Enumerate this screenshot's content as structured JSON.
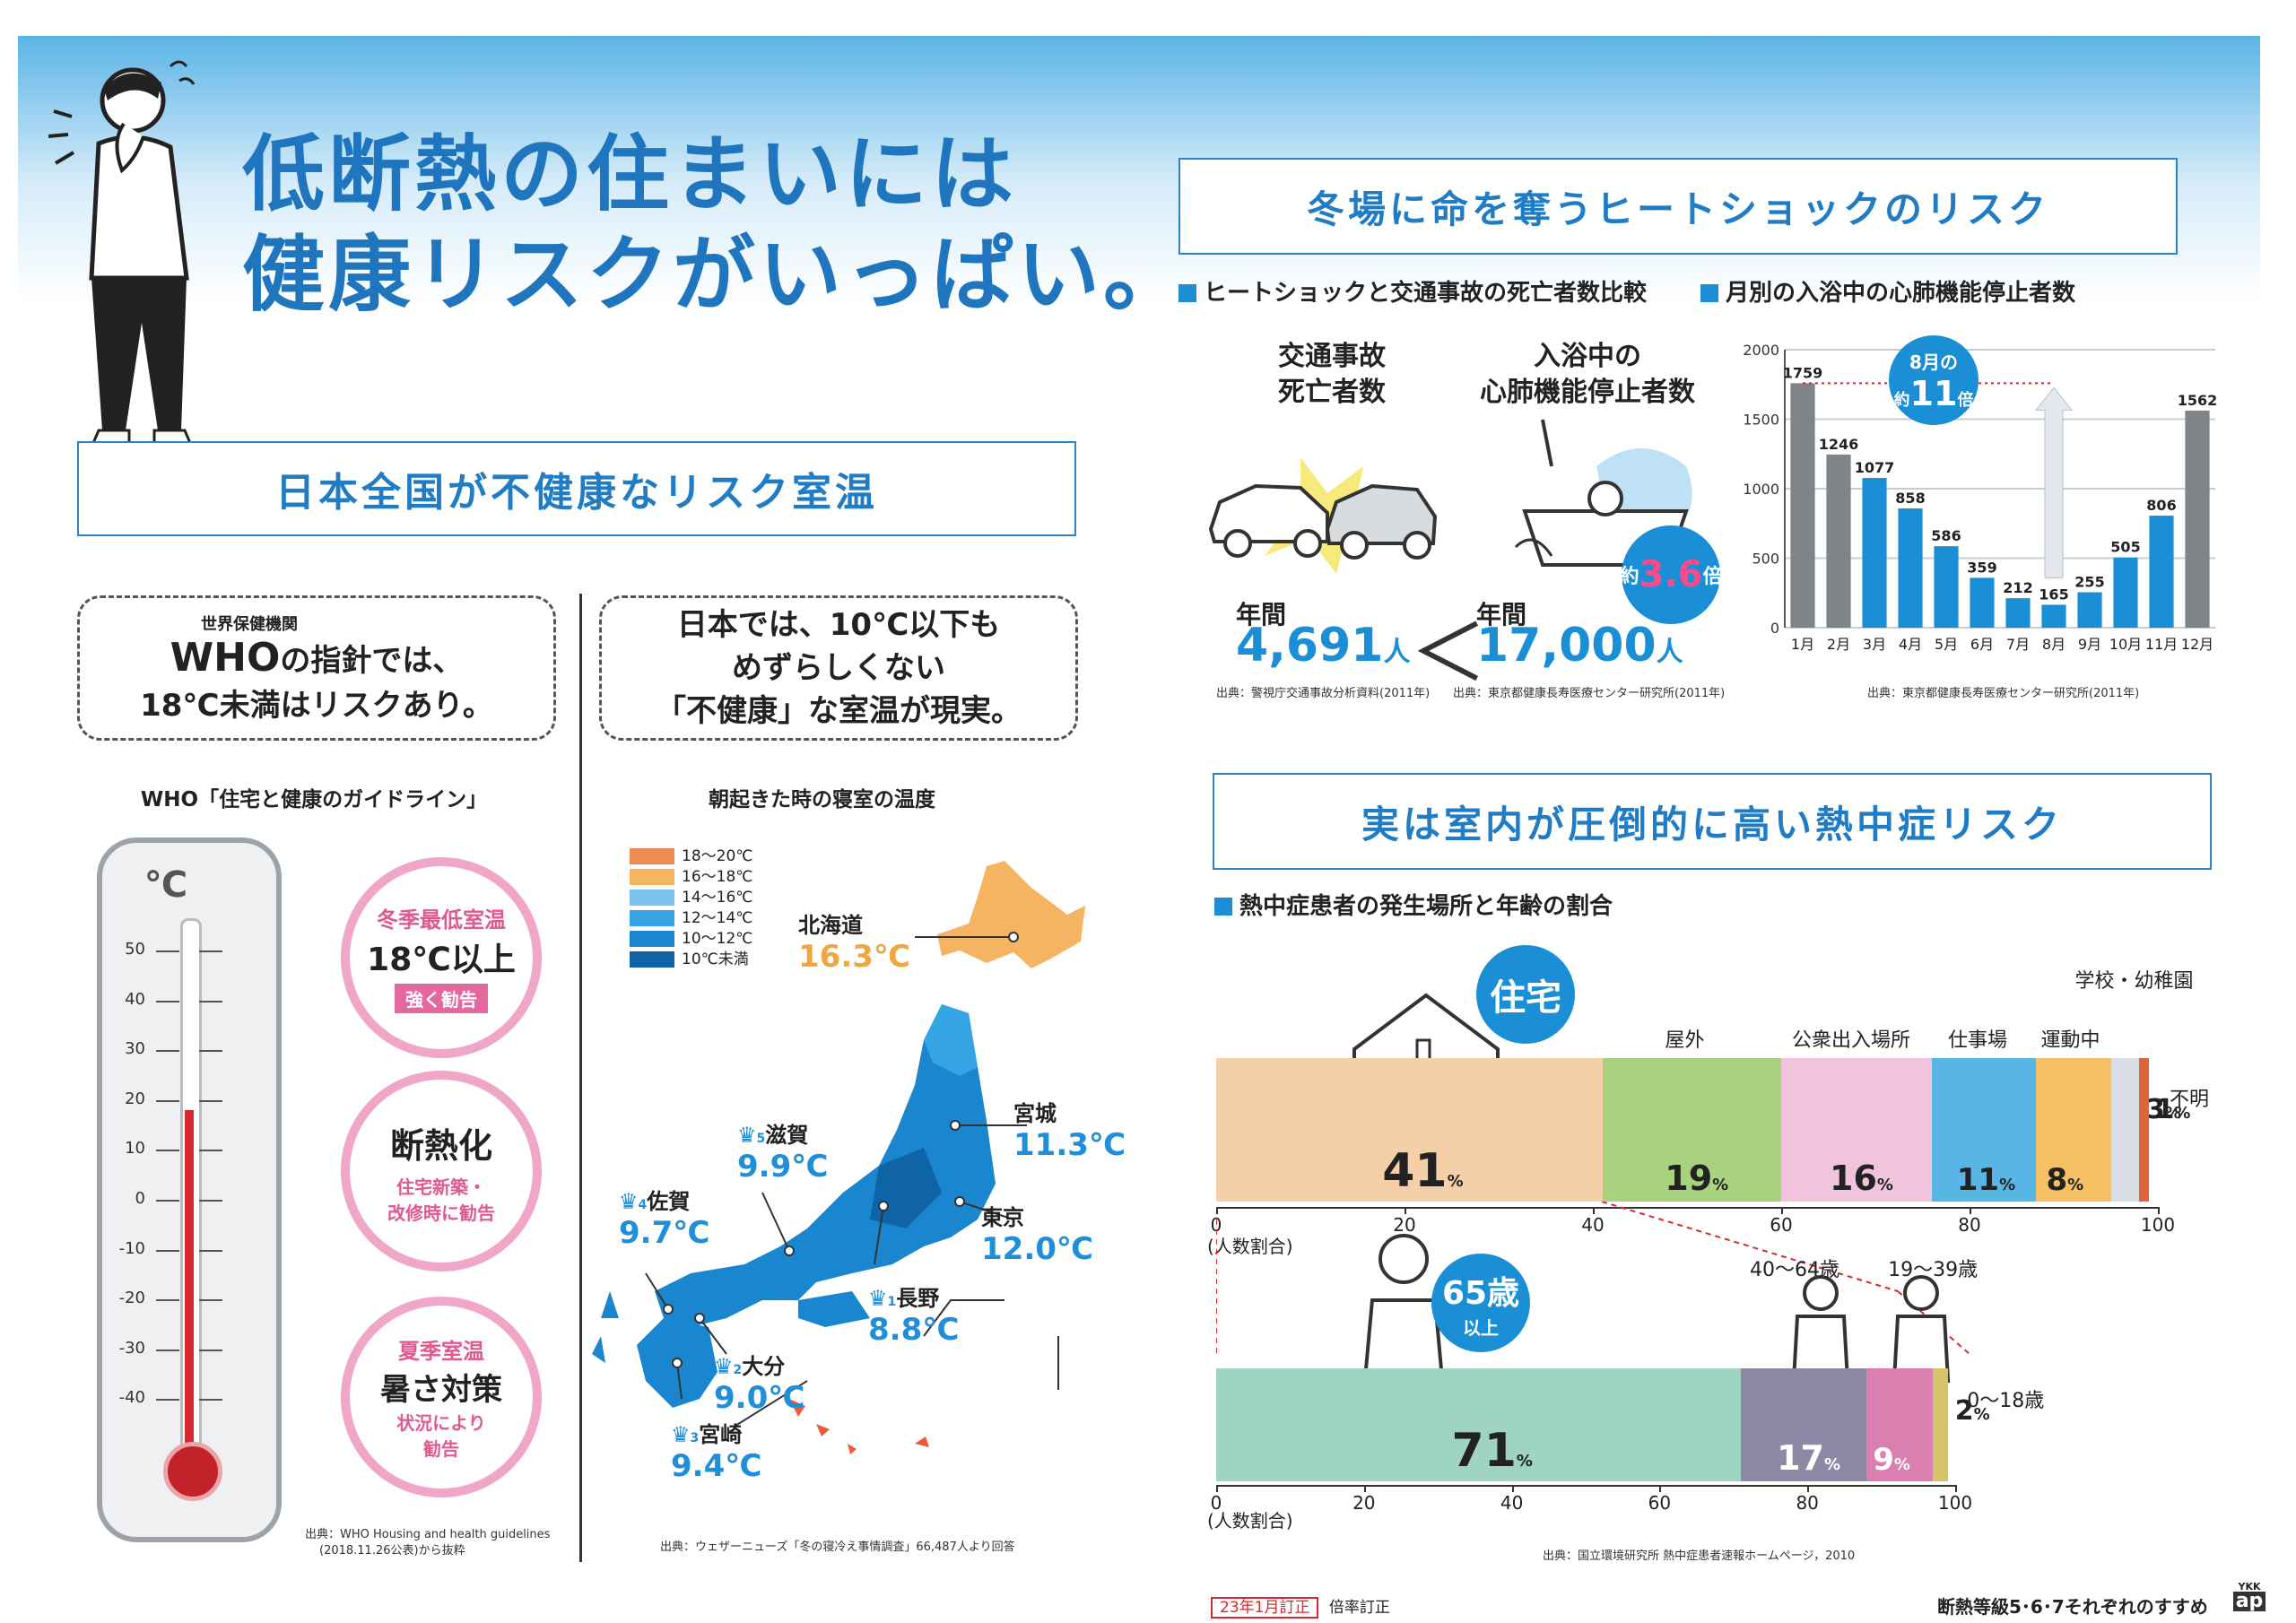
{
  "title": {
    "line1": "低断熱の住まいには",
    "line2": "健康リスクがいっぱい。"
  },
  "section_temp": {
    "banner": "日本全国が不健康なリスク室温",
    "who_bubble": {
      "small": "世界保健機関",
      "big": "WHO",
      "rest": "の指針では、",
      "line2": "18℃未満はリスクあり。"
    },
    "japan_bubble": {
      "line1": "日本では、10℃以下も",
      "line2": "めずらしくない",
      "line3": "「不健康」な室温が現実。"
    },
    "who_caption": "WHO「住宅と健康のガイドライン」",
    "thermo_unit": "℃",
    "thermo_ticks": [
      "50",
      "40",
      "30",
      "20",
      "10",
      "0",
      "-10",
      "-20",
      "-30",
      "-40"
    ],
    "thermo_level_c": 18,
    "circle1": {
      "title": "冬季最低室温",
      "value": "18℃以上",
      "tag": "強く勧告"
    },
    "circle2": {
      "title": "断熱化",
      "note1": "住宅新築・",
      "note2": "改修時に勧告"
    },
    "circle3": {
      "title": "夏季室温",
      "value": "暑さ対策",
      "note1": "状況により",
      "note2": "勧告"
    },
    "who_source1": "出典：WHO Housing and health guidelines",
    "who_source2": "(2018.11.26公表)から抜粋",
    "map_caption": "朝起きた時の寝室の温度",
    "legend": [
      {
        "label": "18～20℃",
        "color": "#ef8a52"
      },
      {
        "label": "16～18℃",
        "color": "#f4b462"
      },
      {
        "label": "14～16℃",
        "color": "#7cc3ee"
      },
      {
        "label": "12～14℃",
        "color": "#35a4e5"
      },
      {
        "label": "10～12℃",
        "color": "#1a86cf"
      },
      {
        "label": "10℃未満",
        "color": "#0f64a8"
      }
    ],
    "cities": [
      {
        "name": "北海道",
        "temp": "16.3℃"
      },
      {
        "name": "宮城",
        "temp": "11.3℃"
      },
      {
        "name": "東京",
        "temp": "12.0℃"
      },
      {
        "name": "長野",
        "temp": "8.8℃",
        "rank": "1"
      },
      {
        "name": "大分",
        "temp": "9.0℃",
        "rank": "2"
      },
      {
        "name": "宮崎",
        "temp": "9.4℃",
        "rank": "3"
      },
      {
        "name": "佐賀",
        "temp": "9.7℃",
        "rank": "4"
      },
      {
        "name": "滋賀",
        "temp": "9.9℃",
        "rank": "5"
      }
    ],
    "map_source": "出典：ウェザーニューズ「冬の寝冷え事情調査」66,487人より回答"
  },
  "heat_shock": {
    "banner": "冬場に命を奪うヒートショックのリスク",
    "sub1": "ヒートショックと交通事故の死亡者数比較",
    "sub2": "月別の入浴中の心肺機能停止者数",
    "traffic_label1": "交通事故",
    "traffic_label2": "死亡者数",
    "bath_label1": "入浴中の",
    "bath_label2": "心肺機能停止者数",
    "year_label": "年間",
    "traffic_value": "4,691",
    "bath_value": "17,000",
    "person_unit": "人",
    "compare_symbol": "＜",
    "ratio_prefix": "約",
    "ratio_value": "3.6",
    "ratio_suffix": "倍",
    "source1": "出典：警視庁交通事故分析資料(2011年)",
    "source2": "出典：東京都健康長寿医療センター研究所(2011年)",
    "chart_source": "出典：東京都健康長寿医療センター研究所(2011年)",
    "aug_badge": {
      "top": "8月の",
      "prefix": "約",
      "value": "11",
      "suffix": "倍"
    }
  },
  "chart_data": {
    "type": "bar",
    "title": "月別の入浴中の心肺機能停止者数",
    "categories": [
      "1月",
      "2月",
      "3月",
      "4月",
      "5月",
      "6月",
      "7月",
      "8月",
      "9月",
      "10月",
      "11月",
      "12月"
    ],
    "values": [
      1759,
      1246,
      1077,
      858,
      586,
      359,
      212,
      165,
      255,
      505,
      806,
      1562
    ],
    "ylim": [
      0,
      2000
    ],
    "yticks": [
      "0",
      "500",
      "1000",
      "1500",
      "2000"
    ],
    "colors": {
      "winter": "#7f8488",
      "other": "#1b8fd6"
    },
    "grid": true
  },
  "heatstroke": {
    "banner": "実は室内が圧倒的に高い熱中症リスク",
    "sub": "熱中症患者の発生場所と年齢の割合",
    "home_badge": "住宅",
    "axis_caption": "(人数割合)",
    "axis_ticks": [
      "0",
      "20",
      "40",
      "60",
      "80",
      "100"
    ],
    "places": [
      {
        "name": "",
        "value": 41,
        "color": "#f4cfa7"
      },
      {
        "name": "屋外",
        "value": 19,
        "color": "#a9d27f"
      },
      {
        "name": "公衆出入場所",
        "value": 16,
        "color": "#f2c3dc"
      },
      {
        "name": "仕事場",
        "value": 11,
        "color": "#58b6e6"
      },
      {
        "name": "運動中",
        "value": 8,
        "color": "#f6c065"
      },
      {
        "name": "学校・幼稚園",
        "value": 3,
        "color": "#d9dde4"
      },
      {
        "name": "不明",
        "value": 1,
        "color": "#e0643a"
      }
    ],
    "age_badge": {
      "value": "65歳",
      "sub": "以上"
    },
    "ages": [
      {
        "name": "",
        "value": 71,
        "color": "#9fd3c3"
      },
      {
        "name": "40～64歳",
        "value": 17,
        "color": "#8d88a6"
      },
      {
        "name": "19～39歳",
        "value": 9,
        "color": "#d980b0"
      },
      {
        "name": "0～18歳",
        "value": 2,
        "color": "#d6c46a"
      }
    ],
    "percent_unit": "%",
    "source": "出典：国立環境研究所 熱中症患者速報ホームページ，2010"
  },
  "footer": {
    "stamp": "23年1月訂正",
    "stamp_after": "倍率訂正",
    "tagline": "断熱等級5･6･7それぞれのすすめ",
    "logo_top": "YKK",
    "logo_bottom": "ap"
  }
}
